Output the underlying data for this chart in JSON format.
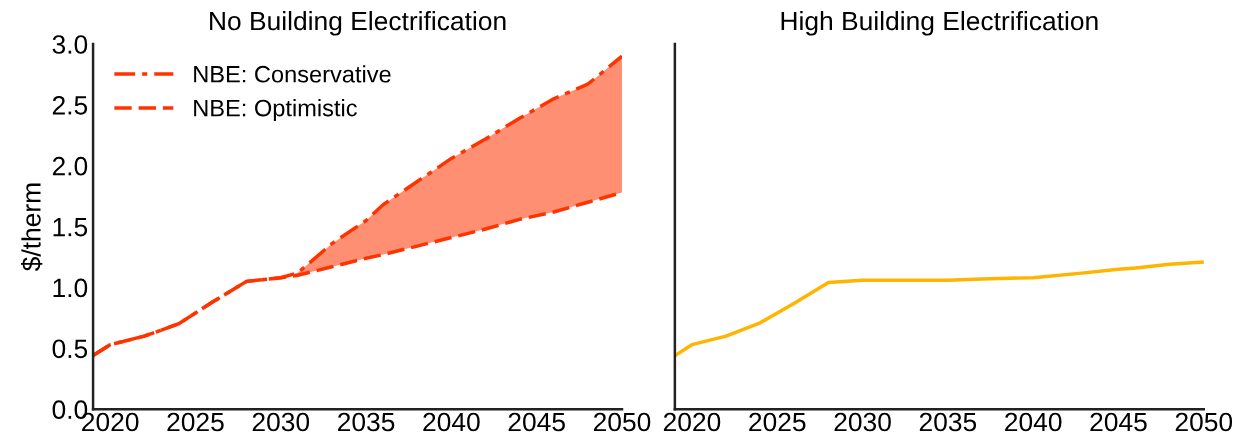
{
  "chart_data": [
    {
      "type": "line",
      "title": "No Building Electrification",
      "ylabel": "$/therm",
      "xlim": [
        2019,
        2050
      ],
      "ylim": [
        0,
        3.0
      ],
      "xticks": [
        2020,
        2025,
        2030,
        2035,
        2040,
        2045,
        2050
      ],
      "yticks": [
        {
          "value": 0,
          "label": "0.0"
        },
        0.5,
        {
          "value": 1,
          "label": "1.0"
        },
        1.5,
        {
          "value": 2,
          "label": "2.0"
        },
        2.5,
        {
          "value": 3,
          "label": "3.0"
        }
      ],
      "grid": false,
      "legend": "top left",
      "series": [
        {
          "name": "NBE: Conservative",
          "color": "#ff3300",
          "line_style": "dashdot",
          "x": [
            2019,
            2020,
            2022,
            2024,
            2026,
            2028,
            2030,
            2031,
            2033,
            2035,
            2036,
            2038,
            2040,
            2042,
            2044,
            2046,
            2048,
            2050
          ],
          "values": [
            0.44,
            0.53,
            0.6,
            0.7,
            0.88,
            1.05,
            1.08,
            1.12,
            1.36,
            1.55,
            1.68,
            1.87,
            2.06,
            2.22,
            2.39,
            2.55,
            2.67,
            2.9
          ]
        },
        {
          "name": "NBE: Optimistic",
          "color": "#ff3300",
          "line_style": "dashed",
          "x": [
            2019,
            2020,
            2022,
            2024,
            2026,
            2028,
            2030,
            2031,
            2033,
            2035,
            2036,
            2038,
            2040,
            2042,
            2044,
            2046,
            2048,
            2050
          ],
          "values": [
            0.44,
            0.53,
            0.6,
            0.7,
            0.88,
            1.05,
            1.08,
            1.1,
            1.17,
            1.24,
            1.27,
            1.34,
            1.41,
            1.48,
            1.56,
            1.62,
            1.7,
            1.78
          ],
          "lower": [
            null,
            null,
            null,
            null,
            null,
            null,
            1.08,
            1.1,
            1.17,
            1.24,
            1.27,
            1.34,
            1.41,
            1.48,
            1.56,
            1.62,
            1.7,
            1.78
          ],
          "upper": [
            null,
            null,
            null,
            null,
            null,
            null,
            1.08,
            1.12,
            1.36,
            1.55,
            1.68,
            1.87,
            2.06,
            2.22,
            2.39,
            2.55,
            2.67,
            2.9
          ]
        }
      ]
    },
    {
      "type": "line",
      "title": "High Building Electrification",
      "xlim": [
        2019,
        2050
      ],
      "ylim": [
        0,
        3.0
      ],
      "xticks": [
        2020,
        2025,
        2030,
        2035,
        2040,
        2045,
        2050
      ],
      "tick_labels": "x",
      "grid": false,
      "series": [
        {
          "color": "#ffb400",
          "line_style": "solid",
          "x": [
            2019,
            2020,
            2022,
            2024,
            2026,
            2028,
            2030,
            2035,
            2037,
            2040,
            2043,
            2045,
            2046,
            2048,
            2050
          ],
          "values": [
            0.44,
            0.53,
            0.6,
            0.71,
            0.87,
            1.04,
            1.06,
            1.06,
            1.07,
            1.08,
            1.12,
            1.15,
            1.16,
            1.19,
            1.21
          ]
        }
      ]
    }
  ]
}
